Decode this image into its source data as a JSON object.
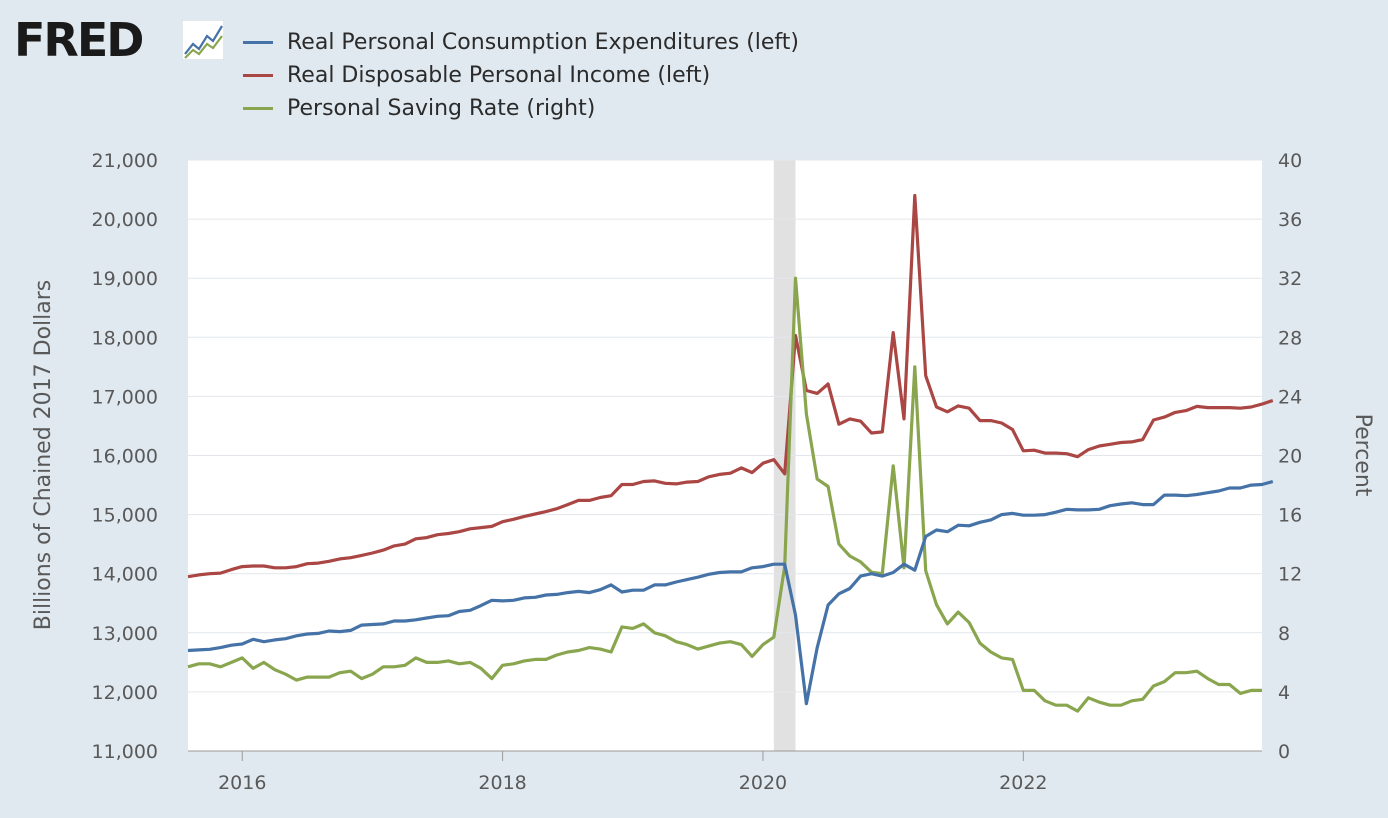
{
  "logo": {
    "text": "FRED"
  },
  "colors": {
    "background": "#e1e9f0",
    "plot_background": "#ffffff",
    "recession": "#e1e1e1",
    "pce": "#4572a7",
    "income": "#aa4643",
    "saving": "#89a54e",
    "grid": "#e3e7eb",
    "text": "#595959"
  },
  "chart_data": {
    "type": "line",
    "left_axis": {
      "label": "Billions of Chained 2017 Dollars",
      "range": [
        11000,
        21000
      ],
      "ticks": [
        "11,000",
        "12,000",
        "13,000",
        "14,000",
        "15,000",
        "16,000",
        "17,000",
        "18,000",
        "19,000",
        "20,000",
        "21,000"
      ]
    },
    "right_axis": {
      "label": "Percent",
      "range": [
        0,
        40
      ],
      "ticks": [
        "0",
        "4",
        "8",
        "12",
        "16",
        "20",
        "24",
        "28",
        "32",
        "36",
        "40"
      ]
    },
    "x_axis": {
      "range": [
        "2015-08",
        "2023-11"
      ],
      "ticks": [
        {
          "label": "2016",
          "date": "2016-01"
        },
        {
          "label": "2018",
          "date": "2018-01"
        },
        {
          "label": "2020",
          "date": "2020-01"
        },
        {
          "label": "2022",
          "date": "2022-01"
        }
      ]
    },
    "recession": {
      "start": "2020-02",
      "end": "2020-04"
    },
    "grid": true,
    "legend_position": "top-left",
    "start_month": "2015-08",
    "series": [
      {
        "name": "Real Personal Consumption Expenditures (left)",
        "axis": "left",
        "color": "#4572a7",
        "values": [
          12700,
          12710,
          12720,
          12750,
          12790,
          12810,
          12890,
          12850,
          12880,
          12900,
          12950,
          12980,
          12990,
          13030,
          13020,
          13040,
          13130,
          13140,
          13150,
          13200,
          13200,
          13220,
          13250,
          13280,
          13290,
          13360,
          13380,
          13460,
          13550,
          13540,
          13550,
          13590,
          13600,
          13640,
          13650,
          13680,
          13700,
          13680,
          13730,
          13810,
          13690,
          13720,
          13720,
          13810,
          13810,
          13860,
          13900,
          13940,
          13990,
          14020,
          14030,
          14030,
          14100,
          14120,
          14160,
          14160,
          13300,
          11800,
          12750,
          13470,
          13660,
          13750,
          13960,
          14000,
          13960,
          14020,
          14160,
          14060,
          14630,
          14740,
          14710,
          14820,
          14810,
          14870,
          14910,
          15000,
          15020,
          14990,
          14990,
          15000,
          15040,
          15090,
          15080,
          15080,
          15090,
          15150,
          15180,
          15200,
          15170,
          15170,
          15330,
          15330,
          15320,
          15340,
          15370,
          15400,
          15450,
          15450,
          15500,
          15510,
          15560
        ]
      },
      {
        "name": "Real Disposable Personal Income (left)",
        "axis": "left",
        "color": "#aa4643",
        "values": [
          13950,
          13980,
          14000,
          14010,
          14070,
          14120,
          14130,
          14130,
          14100,
          14100,
          14120,
          14170,
          14180,
          14210,
          14250,
          14270,
          14310,
          14350,
          14400,
          14470,
          14500,
          14590,
          14610,
          14660,
          14680,
          14710,
          14760,
          14780,
          14800,
          14880,
          14920,
          14970,
          15010,
          15050,
          15100,
          15170,
          15240,
          15240,
          15290,
          15320,
          15510,
          15510,
          15560,
          15570,
          15530,
          15520,
          15550,
          15560,
          15640,
          15680,
          15700,
          15790,
          15710,
          15870,
          15930,
          15690,
          18030,
          17100,
          17050,
          17210,
          16530,
          16620,
          16580,
          16380,
          16400,
          18080,
          16620,
          20400,
          17350,
          16820,
          16740,
          16840,
          16800,
          16590,
          16590,
          16550,
          16440,
          16080,
          16090,
          16040,
          16040,
          16030,
          15980,
          16100,
          16160,
          16190,
          16220,
          16230,
          16270,
          16600,
          16650,
          16730,
          16760,
          16830,
          16810,
          16810,
          16810,
          16800,
          16820,
          16870,
          16930
        ]
      },
      {
        "name": "Personal Saving Rate (right)",
        "axis": "right",
        "color": "#89a54e",
        "values": [
          5.7,
          5.9,
          5.9,
          5.7,
          6.0,
          6.3,
          5.6,
          6.0,
          5.5,
          5.2,
          4.8,
          5.0,
          5.0,
          5.0,
          5.3,
          5.4,
          4.9,
          5.2,
          5.7,
          5.7,
          5.8,
          6.3,
          6.0,
          6.0,
          6.1,
          5.9,
          6.0,
          5.6,
          4.9,
          5.8,
          5.9,
          6.1,
          6.2,
          6.2,
          6.5,
          6.7,
          6.8,
          7.0,
          6.9,
          6.7,
          8.4,
          8.3,
          8.6,
          8.0,
          7.8,
          7.4,
          7.2,
          6.9,
          7.1,
          7.3,
          7.4,
          7.2,
          6.4,
          7.2,
          7.7,
          12.5,
          32.0,
          22.8,
          18.4,
          17.9,
          14.0,
          13.2,
          12.8,
          12.1,
          12.0,
          19.3,
          12.4,
          26.0,
          12.2,
          9.9,
          8.6,
          9.4,
          8.7,
          7.3,
          6.7,
          6.3,
          6.2,
          4.1,
          4.1,
          3.4,
          3.1,
          3.1,
          2.7,
          3.6,
          3.3,
          3.1,
          3.1,
          3.4,
          3.5,
          4.4,
          4.7,
          5.3,
          5.3,
          5.4,
          4.9,
          4.5,
          4.5,
          3.9,
          4.1,
          4.1
        ]
      }
    ]
  }
}
